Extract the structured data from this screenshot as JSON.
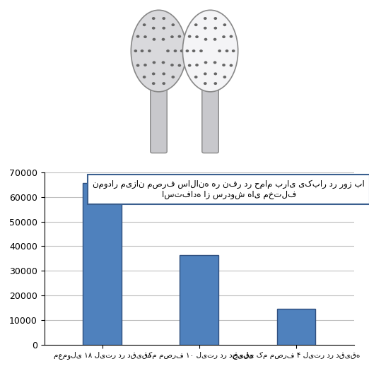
{
  "chart_data": {
    "type": "bar",
    "title": "نمودار میزان مصرف سالانه هر نفر در حمام برای یکبار در روز با استفاده از سردوش های مختلف",
    "categories": [
      "معمولی ۱۸ لیتر در دقیقه",
      "کم مصرف ۱۰ لیتر در دقیقه",
      "خیلی کم مصرف ۴ لیتر در دقیقه"
    ],
    "values": [
      65700,
      36500,
      14600
    ],
    "color": "#4f81bd",
    "ylim": [
      0,
      70000
    ],
    "yticks": [
      0,
      10000,
      20000,
      30000,
      40000,
      50000,
      60000,
      70000
    ],
    "grid": true
  }
}
